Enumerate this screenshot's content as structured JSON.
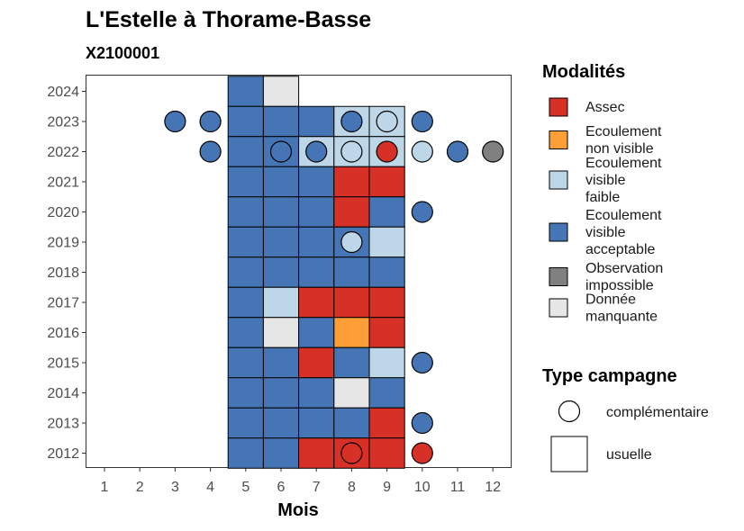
{
  "chart_data": {
    "type": "heatmap",
    "title": "L'Estelle à Thorame-Basse",
    "subtitle": "X2100001",
    "xlabel": "Mois",
    "ylabel": "",
    "x_ticks": [
      "1",
      "2",
      "3",
      "4",
      "5",
      "6",
      "7",
      "8",
      "9",
      "10",
      "11",
      "12"
    ],
    "y_ticks": [
      "2012",
      "2013",
      "2014",
      "2015",
      "2016",
      "2017",
      "2018",
      "2019",
      "2020",
      "2021",
      "2022",
      "2023",
      "2024"
    ],
    "xlim": [
      0.5,
      12.5
    ],
    "ylim": [
      2011.5,
      2024.5
    ],
    "colors": {
      "Assec": "#d73027",
      "Ecoulement non visible": "#fd9f36",
      "Ecoulement visible faible": "#bed7e8",
      "Ecoulement visible acceptable": "#4575b4",
      "Observation impossible": "#808080",
      "Donnée manquante": "#e6e6e6"
    },
    "legend_modalites": {
      "title": "Modalités",
      "items": [
        {
          "key": "Assec",
          "lines": [
            "Assec"
          ]
        },
        {
          "key": "Ecoulement non visible",
          "lines": [
            "Ecoulement",
            "non visible"
          ]
        },
        {
          "key": "Ecoulement visible faible",
          "lines": [
            "Ecoulement",
            "visible",
            "faible"
          ]
        },
        {
          "key": "Ecoulement visible acceptable",
          "lines": [
            "Ecoulement",
            "visible",
            "acceptable"
          ]
        },
        {
          "key": "Observation impossible",
          "lines": [
            "Observation",
            "impossible"
          ]
        },
        {
          "key": "Donnée manquante",
          "lines": [
            "Donnée",
            "manquante"
          ]
        }
      ]
    },
    "legend_campagne": {
      "title": "Type campagne",
      "items": [
        {
          "shape": "circle",
          "label": "complémentaire"
        },
        {
          "shape": "square",
          "label": "usuelle"
        }
      ]
    },
    "usuelle": [
      {
        "year": 2024,
        "month": 5,
        "status": "Ecoulement visible acceptable"
      },
      {
        "year": 2024,
        "month": 6,
        "status": "Donnée manquante"
      },
      {
        "year": 2023,
        "month": 5,
        "status": "Ecoulement visible acceptable"
      },
      {
        "year": 2023,
        "month": 6,
        "status": "Ecoulement visible acceptable"
      },
      {
        "year": 2023,
        "month": 7,
        "status": "Ecoulement visible acceptable"
      },
      {
        "year": 2023,
        "month": 8,
        "status": "Ecoulement visible faible"
      },
      {
        "year": 2023,
        "month": 9,
        "status": "Ecoulement visible faible"
      },
      {
        "year": 2022,
        "month": 5,
        "status": "Ecoulement visible acceptable"
      },
      {
        "year": 2022,
        "month": 6,
        "status": "Ecoulement visible acceptable"
      },
      {
        "year": 2022,
        "month": 7,
        "status": "Ecoulement visible faible"
      },
      {
        "year": 2022,
        "month": 8,
        "status": "Ecoulement visible faible"
      },
      {
        "year": 2022,
        "month": 9,
        "status": "Ecoulement visible faible"
      },
      {
        "year": 2021,
        "month": 5,
        "status": "Ecoulement visible acceptable"
      },
      {
        "year": 2021,
        "month": 6,
        "status": "Ecoulement visible acceptable"
      },
      {
        "year": 2021,
        "month": 7,
        "status": "Ecoulement visible acceptable"
      },
      {
        "year": 2021,
        "month": 8,
        "status": "Assec"
      },
      {
        "year": 2021,
        "month": 9,
        "status": "Assec"
      },
      {
        "year": 2020,
        "month": 5,
        "status": "Ecoulement visible acceptable"
      },
      {
        "year": 2020,
        "month": 6,
        "status": "Ecoulement visible acceptable"
      },
      {
        "year": 2020,
        "month": 7,
        "status": "Ecoulement visible acceptable"
      },
      {
        "year": 2020,
        "month": 8,
        "status": "Assec"
      },
      {
        "year": 2020,
        "month": 9,
        "status": "Ecoulement visible acceptable"
      },
      {
        "year": 2019,
        "month": 5,
        "status": "Ecoulement visible acceptable"
      },
      {
        "year": 2019,
        "month": 6,
        "status": "Ecoulement visible acceptable"
      },
      {
        "year": 2019,
        "month": 7,
        "status": "Ecoulement visible acceptable"
      },
      {
        "year": 2019,
        "month": 8,
        "status": "Ecoulement visible acceptable"
      },
      {
        "year": 2019,
        "month": 9,
        "status": "Ecoulement visible faible"
      },
      {
        "year": 2018,
        "month": 5,
        "status": "Ecoulement visible acceptable"
      },
      {
        "year": 2018,
        "month": 6,
        "status": "Ecoulement visible acceptable"
      },
      {
        "year": 2018,
        "month": 7,
        "status": "Ecoulement visible acceptable"
      },
      {
        "year": 2018,
        "month": 8,
        "status": "Ecoulement visible acceptable"
      },
      {
        "year": 2018,
        "month": 9,
        "status": "Ecoulement visible acceptable"
      },
      {
        "year": 2017,
        "month": 5,
        "status": "Ecoulement visible acceptable"
      },
      {
        "year": 2017,
        "month": 6,
        "status": "Ecoulement visible faible"
      },
      {
        "year": 2017,
        "month": 7,
        "status": "Assec"
      },
      {
        "year": 2017,
        "month": 8,
        "status": "Assec"
      },
      {
        "year": 2017,
        "month": 9,
        "status": "Assec"
      },
      {
        "year": 2016,
        "month": 5,
        "status": "Ecoulement visible acceptable"
      },
      {
        "year": 2016,
        "month": 6,
        "status": "Donnée manquante"
      },
      {
        "year": 2016,
        "month": 7,
        "status": "Ecoulement visible acceptable"
      },
      {
        "year": 2016,
        "month": 8,
        "status": "Ecoulement non visible"
      },
      {
        "year": 2016,
        "month": 9,
        "status": "Assec"
      },
      {
        "year": 2015,
        "month": 5,
        "status": "Ecoulement visible acceptable"
      },
      {
        "year": 2015,
        "month": 6,
        "status": "Ecoulement visible acceptable"
      },
      {
        "year": 2015,
        "month": 7,
        "status": "Assec"
      },
      {
        "year": 2015,
        "month": 8,
        "status": "Ecoulement visible acceptable"
      },
      {
        "year": 2015,
        "month": 9,
        "status": "Ecoulement visible faible"
      },
      {
        "year": 2014,
        "month": 5,
        "status": "Ecoulement visible acceptable"
      },
      {
        "year": 2014,
        "month": 6,
        "status": "Ecoulement visible acceptable"
      },
      {
        "year": 2014,
        "month": 7,
        "status": "Ecoulement visible acceptable"
      },
      {
        "year": 2014,
        "month": 8,
        "status": "Donnée manquante"
      },
      {
        "year": 2014,
        "month": 9,
        "status": "Ecoulement visible acceptable"
      },
      {
        "year": 2013,
        "month": 5,
        "status": "Ecoulement visible acceptable"
      },
      {
        "year": 2013,
        "month": 6,
        "status": "Ecoulement visible acceptable"
      },
      {
        "year": 2013,
        "month": 7,
        "status": "Ecoulement visible acceptable"
      },
      {
        "year": 2013,
        "month": 8,
        "status": "Ecoulement visible acceptable"
      },
      {
        "year": 2013,
        "month": 9,
        "status": "Assec"
      },
      {
        "year": 2012,
        "month": 5,
        "status": "Ecoulement visible acceptable"
      },
      {
        "year": 2012,
        "month": 6,
        "status": "Ecoulement visible acceptable"
      },
      {
        "year": 2012,
        "month": 7,
        "status": "Assec"
      },
      {
        "year": 2012,
        "month": 8,
        "status": "Assec"
      },
      {
        "year": 2012,
        "month": 9,
        "status": "Assec"
      }
    ],
    "complementaire": [
      {
        "year": 2023,
        "month": 3,
        "status": "Ecoulement visible acceptable"
      },
      {
        "year": 2023,
        "month": 4,
        "status": "Ecoulement visible acceptable"
      },
      {
        "year": 2023,
        "month": 8,
        "status": "Ecoulement visible acceptable"
      },
      {
        "year": 2023,
        "month": 9,
        "status": "Ecoulement visible faible"
      },
      {
        "year": 2023,
        "month": 10,
        "status": "Ecoulement visible acceptable"
      },
      {
        "year": 2022,
        "month": 4,
        "status": "Ecoulement visible acceptable"
      },
      {
        "year": 2022,
        "month": 6,
        "status": "Ecoulement visible acceptable"
      },
      {
        "year": 2022,
        "month": 7,
        "status": "Ecoulement visible acceptable"
      },
      {
        "year": 2022,
        "month": 8,
        "status": "Ecoulement visible faible"
      },
      {
        "year": 2022,
        "month": 9,
        "status": "Assec"
      },
      {
        "year": 2022,
        "month": 10,
        "status": "Ecoulement visible faible"
      },
      {
        "year": 2022,
        "month": 11,
        "status": "Ecoulement visible acceptable"
      },
      {
        "year": 2022,
        "month": 12,
        "status": "Observation impossible"
      },
      {
        "year": 2020,
        "month": 10,
        "status": "Ecoulement visible acceptable"
      },
      {
        "year": 2019,
        "month": 8,
        "status": "Ecoulement visible faible"
      },
      {
        "year": 2015,
        "month": 10,
        "status": "Ecoulement visible acceptable"
      },
      {
        "year": 2013,
        "month": 10,
        "status": "Ecoulement visible acceptable"
      },
      {
        "year": 2012,
        "month": 8,
        "status": "Assec"
      },
      {
        "year": 2012,
        "month": 10,
        "status": "Assec"
      }
    ]
  }
}
